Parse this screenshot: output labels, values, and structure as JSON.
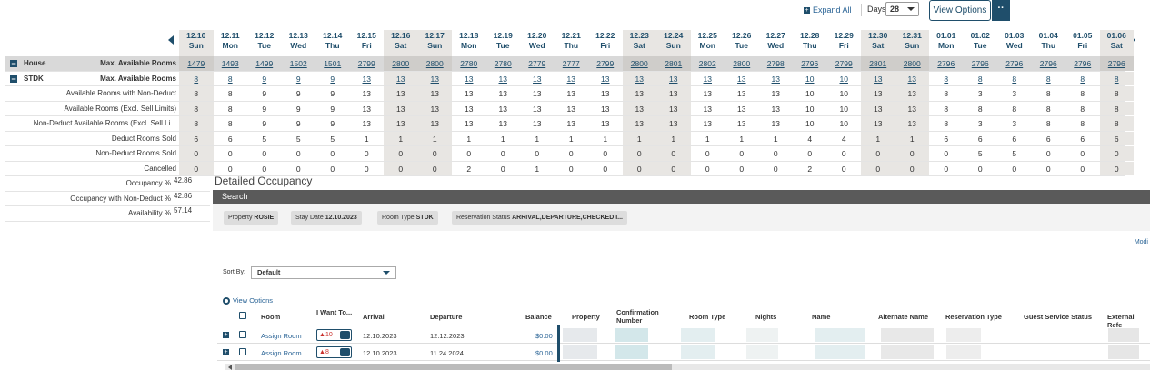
{
  "controls": {
    "expand_all": "Expand All",
    "days_label": "Days",
    "days_value": "28",
    "view_options": "View Options",
    "more": "··"
  },
  "dates": [
    {
      "d": "12.10",
      "w": "Sun",
      "we": true
    },
    {
      "d": "12.11",
      "w": "Mon"
    },
    {
      "d": "12.12",
      "w": "Tue"
    },
    {
      "d": "12.13",
      "w": "Wed"
    },
    {
      "d": "12.14",
      "w": "Thu"
    },
    {
      "d": "12.15",
      "w": "Fri"
    },
    {
      "d": "12.16",
      "w": "Sat",
      "we": true
    },
    {
      "d": "12.17",
      "w": "Sun",
      "we": true
    },
    {
      "d": "12.18",
      "w": "Mon"
    },
    {
      "d": "12.19",
      "w": "Tue"
    },
    {
      "d": "12.20",
      "w": "Wed"
    },
    {
      "d": "12.21",
      "w": "Thu"
    },
    {
      "d": "12.22",
      "w": "Fri"
    },
    {
      "d": "12.23",
      "w": "Sat",
      "we": true
    },
    {
      "d": "12.24",
      "w": "Sun",
      "we": true
    },
    {
      "d": "12.25",
      "w": "Mon"
    },
    {
      "d": "12.26",
      "w": "Tue"
    },
    {
      "d": "12.27",
      "w": "Wed"
    },
    {
      "d": "12.28",
      "w": "Thu"
    },
    {
      "d": "12.29",
      "w": "Fri"
    },
    {
      "d": "12.30",
      "w": "Sat",
      "we": true
    },
    {
      "d": "12.31",
      "w": "Sun",
      "we": true
    },
    {
      "d": "01.01",
      "w": "Mon"
    },
    {
      "d": "01.02",
      "w": "Tue"
    },
    {
      "d": "01.03",
      "w": "Wed"
    },
    {
      "d": "01.04",
      "w": "Thu"
    },
    {
      "d": "01.05",
      "w": "Fri"
    },
    {
      "d": "01.06",
      "w": "Sat",
      "we": true
    }
  ],
  "grid": [
    {
      "group": "House",
      "label": "Max. Available Rooms",
      "shaded": true,
      "link": true,
      "plus": "−",
      "values": [
        "1479",
        "1493",
        "1499",
        "1502",
        "1501",
        "2799",
        "2800",
        "2800",
        "2780",
        "2780",
        "2779",
        "2777",
        "2799",
        "2800",
        "2801",
        "2802",
        "2800",
        "2798",
        "2796",
        "2799",
        "2801",
        "2800",
        "2796",
        "2796",
        "2796",
        "2796",
        "2796",
        "2796"
      ]
    },
    {
      "group": "STDK",
      "label": "Max. Available Rooms",
      "link": true,
      "plus": "−",
      "values": [
        "8",
        "8",
        "9",
        "9",
        "9",
        "13",
        "13",
        "13",
        "13",
        "13",
        "13",
        "13",
        "13",
        "13",
        "13",
        "13",
        "13",
        "13",
        "10",
        "10",
        "13",
        "13",
        "8",
        "8",
        "8",
        "8",
        "8",
        "8"
      ]
    },
    {
      "label": "Available Rooms with Non-Deduct",
      "values": [
        "8",
        "8",
        "9",
        "9",
        "9",
        "13",
        "13",
        "13",
        "13",
        "13",
        "13",
        "13",
        "13",
        "13",
        "13",
        "13",
        "13",
        "13",
        "10",
        "10",
        "13",
        "13",
        "8",
        "3",
        "3",
        "8",
        "8",
        "8"
      ]
    },
    {
      "label": "Available Rooms (Excl. Sell Limits)",
      "values": [
        "8",
        "8",
        "9",
        "9",
        "9",
        "13",
        "13",
        "13",
        "13",
        "13",
        "13",
        "13",
        "13",
        "13",
        "13",
        "13",
        "13",
        "13",
        "10",
        "10",
        "13",
        "13",
        "8",
        "8",
        "8",
        "8",
        "8",
        "8"
      ]
    },
    {
      "label": "Non-Deduct Available Rooms (Excl. Sell Li...",
      "values": [
        "8",
        "8",
        "9",
        "9",
        "9",
        "13",
        "13",
        "13",
        "13",
        "13",
        "13",
        "13",
        "13",
        "13",
        "13",
        "13",
        "13",
        "13",
        "10",
        "10",
        "13",
        "13",
        "8",
        "3",
        "3",
        "8",
        "8",
        "8"
      ]
    },
    {
      "label": "Deduct Rooms Sold",
      "values": [
        "6",
        "6",
        "5",
        "5",
        "5",
        "1",
        "1",
        "1",
        "1",
        "1",
        "1",
        "1",
        "1",
        "1",
        "1",
        "1",
        "1",
        "1",
        "4",
        "4",
        "1",
        "1",
        "6",
        "6",
        "6",
        "6",
        "6",
        "6"
      ]
    },
    {
      "label": "Non-Deduct Rooms Sold",
      "values": [
        "0",
        "0",
        "0",
        "0",
        "0",
        "0",
        "0",
        "0",
        "0",
        "0",
        "0",
        "0",
        "0",
        "0",
        "0",
        "0",
        "0",
        "0",
        "0",
        "0",
        "0",
        "0",
        "0",
        "5",
        "5",
        "0",
        "0",
        "0"
      ]
    },
    {
      "label": "Cancelled",
      "values": [
        "0",
        "0",
        "0",
        "0",
        "0",
        "0",
        "0",
        "0",
        "2",
        "0",
        "1",
        "0",
        "0",
        "0",
        "0",
        "0",
        "0",
        "0",
        "2",
        "0",
        "0",
        "0",
        "0",
        "0",
        "0",
        "0",
        "0",
        "0"
      ]
    }
  ],
  "lower_rows": [
    {
      "label": "Occupancy %",
      "value": "42.86"
    },
    {
      "label": "Occupancy with Non-Deduct %",
      "value": "42.86"
    },
    {
      "label": "Availability %",
      "value": "57.14"
    }
  ],
  "detail": {
    "title": "Detailed Occupancy",
    "search": "Search",
    "chips": [
      {
        "k": "Property",
        "v": "ROSIE"
      },
      {
        "k": "Stay Date",
        "v": "12.10.2023"
      },
      {
        "k": "Room Type",
        "v": "STDK"
      },
      {
        "k": "Reservation Status",
        "v": "ARRIVAL,DEPARTURE,CHECKED I..."
      }
    ],
    "modify": "Modi",
    "sort_by": "Sort By:",
    "sort_value": "Default",
    "view_options": "View Options",
    "columns": [
      "Room",
      "I Want To...",
      "Arrival",
      "Departure",
      "Balance",
      "Property",
      "Confirmation Number",
      "Room Type",
      "Nights",
      "Name",
      "Alternate Name",
      "Reservation Type",
      "Guest Service Status",
      "External Refe"
    ],
    "rows": [
      {
        "room": "Assign Room",
        "iwt": "10",
        "arrival": "12.10.2023",
        "departure": "12.12.2023",
        "balance": "$0.00"
      },
      {
        "room": "Assign Room",
        "iwt": "8",
        "arrival": "12.10.2023",
        "departure": "11.24.2024",
        "balance": "$0.00"
      }
    ]
  }
}
